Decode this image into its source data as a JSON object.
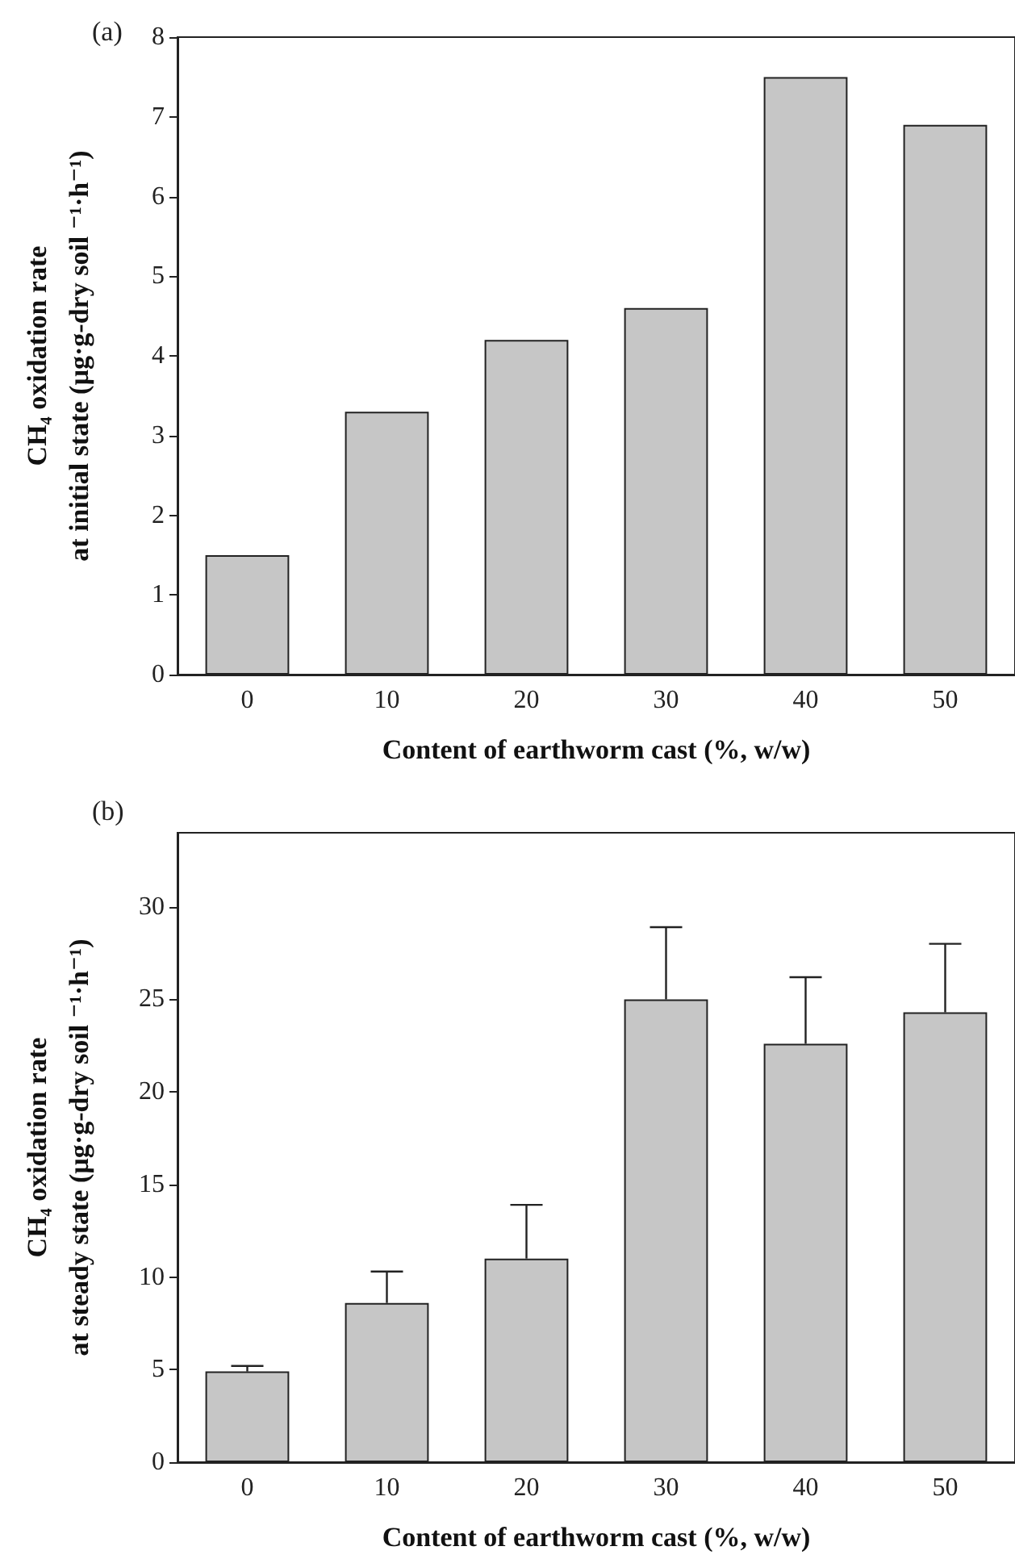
{
  "chart_data": [
    {
      "type": "bar",
      "title": "(a)",
      "categories": [
        "0",
        "10",
        "20",
        "30",
        "40",
        "50"
      ],
      "values": [
        1.5,
        3.3,
        4.2,
        4.6,
        7.5,
        6.9
      ],
      "color": "#c6c6c6",
      "xlabel": "Content of earthworm cast (%, w/w)",
      "ylabel": "CH₄ oxidation rate\nat initial state (µg·g-dry soil ⁻¹·h⁻¹)",
      "ylim": [
        0,
        8
      ],
      "yticks": [
        0,
        1,
        2,
        3,
        4,
        5,
        6,
        7,
        8
      ],
      "grid": false
    },
    {
      "type": "bar",
      "title": "(b)",
      "categories": [
        "0",
        "10",
        "20",
        "30",
        "40",
        "50"
      ],
      "values": [
        4.9,
        8.6,
        11.0,
        25.0,
        22.6,
        24.3
      ],
      "errors": [
        [
          4.9,
          5.2
        ],
        [
          8.6,
          10.3
        ],
        [
          11.0,
          13.9
        ],
        [
          25.0,
          28.9
        ],
        [
          22.6,
          26.2
        ],
        [
          24.3,
          28.0
        ]
      ],
      "color": "#c6c6c6",
      "xlabel": "Content of earthworm cast (%, w/w)",
      "ylabel": "CH₄ oxidation rate\nat steady state (µg·g-dry soil ⁻¹·h⁻¹)",
      "ylim": [
        0,
        34
      ],
      "yticks": [
        0,
        5,
        10,
        15,
        20,
        25,
        30
      ],
      "grid": false
    }
  ]
}
